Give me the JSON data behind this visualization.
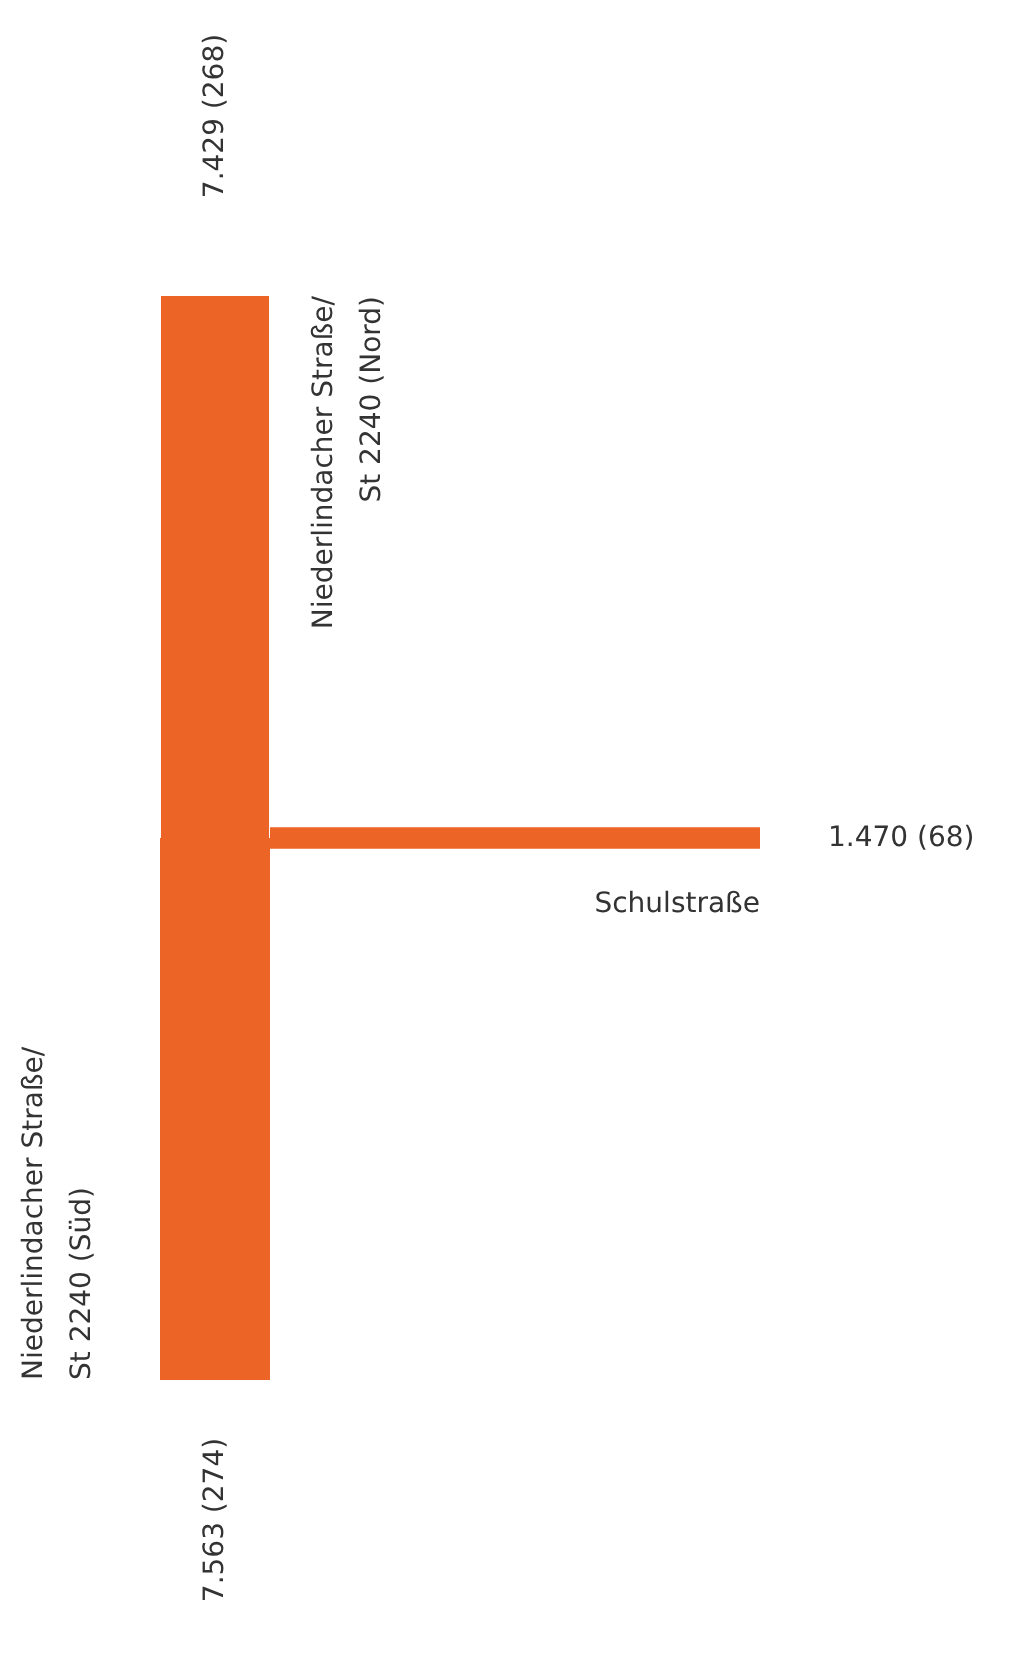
{
  "chart_data": {
    "type": "other",
    "categories": [
      "Niederlindacher Straße/\nSt 2240 (Nord)",
      "Schulstraße",
      "Niederlindacher Straße/\nSt 2240 (Süd)"
    ],
    "values": [
      7429,
      1470,
      7563
    ],
    "value_labels": [
      "7.429 (268)",
      "1.470 (68)",
      "7.563 (274)"
    ],
    "colors": [
      "#ec6527",
      "#ec6527",
      "#ec6527"
    ]
  }
}
